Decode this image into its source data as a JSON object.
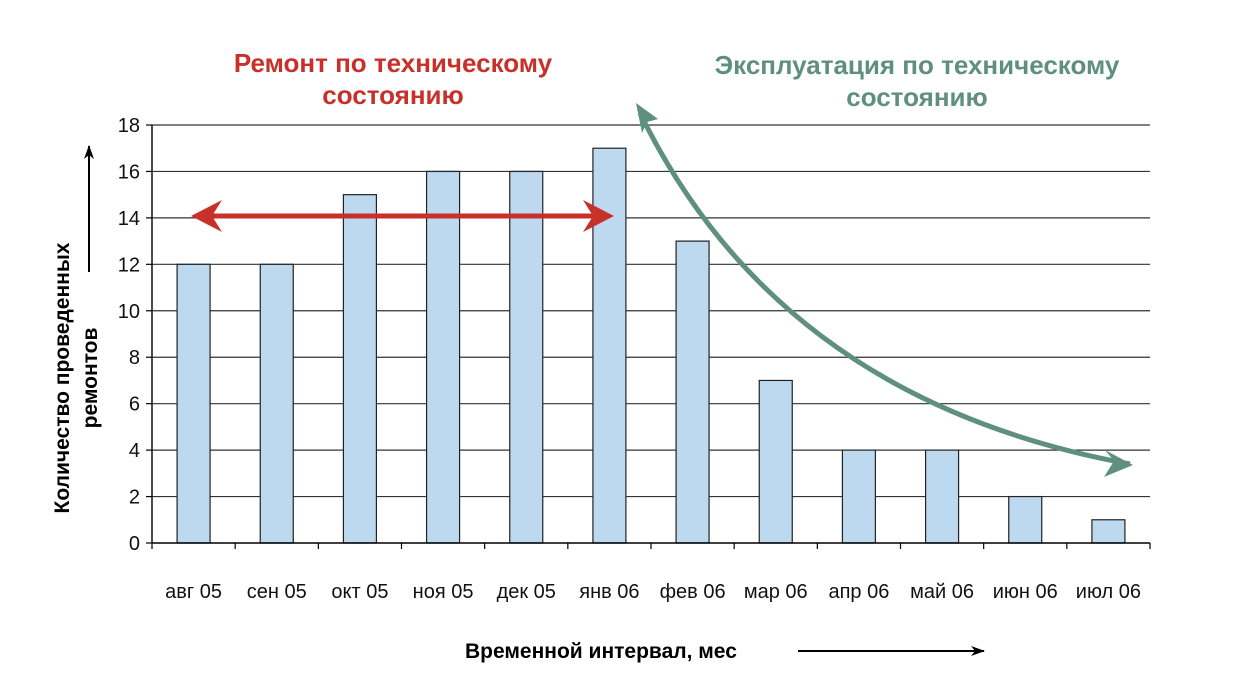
{
  "chart_data": {
    "type": "bar",
    "categories": [
      "авг 05",
      "сен 05",
      "окт 05",
      "ноя 05",
      "дек 05",
      "янв 06",
      "фев 06",
      "мар 06",
      "апр 06",
      "май 06",
      "июн 06",
      "июл 06"
    ],
    "values": [
      12,
      12,
      15,
      16,
      16,
      17,
      13,
      7,
      4,
      4,
      2,
      1
    ],
    "xlabel": "Временной интервал, мес",
    "ylabel_line1": "Количество проведенных",
    "ylabel_line2": "ремонтов",
    "ylim": [
      0,
      18
    ],
    "yticks": [
      0,
      2,
      4,
      6,
      8,
      10,
      12,
      14,
      16,
      18
    ],
    "grid": true,
    "annotations": {
      "left_line1": "Ремонт по техническому",
      "left_line2": "состоянию",
      "right_line1": "Эксплуатация по техническому",
      "right_line2": "состоянию"
    },
    "colors": {
      "bar_fill": "#bcd9ef",
      "bar_stroke": "#222222",
      "grid": "#333333",
      "red_annotation": "#c8312a",
      "green_annotation": "#5f8f7e"
    }
  }
}
